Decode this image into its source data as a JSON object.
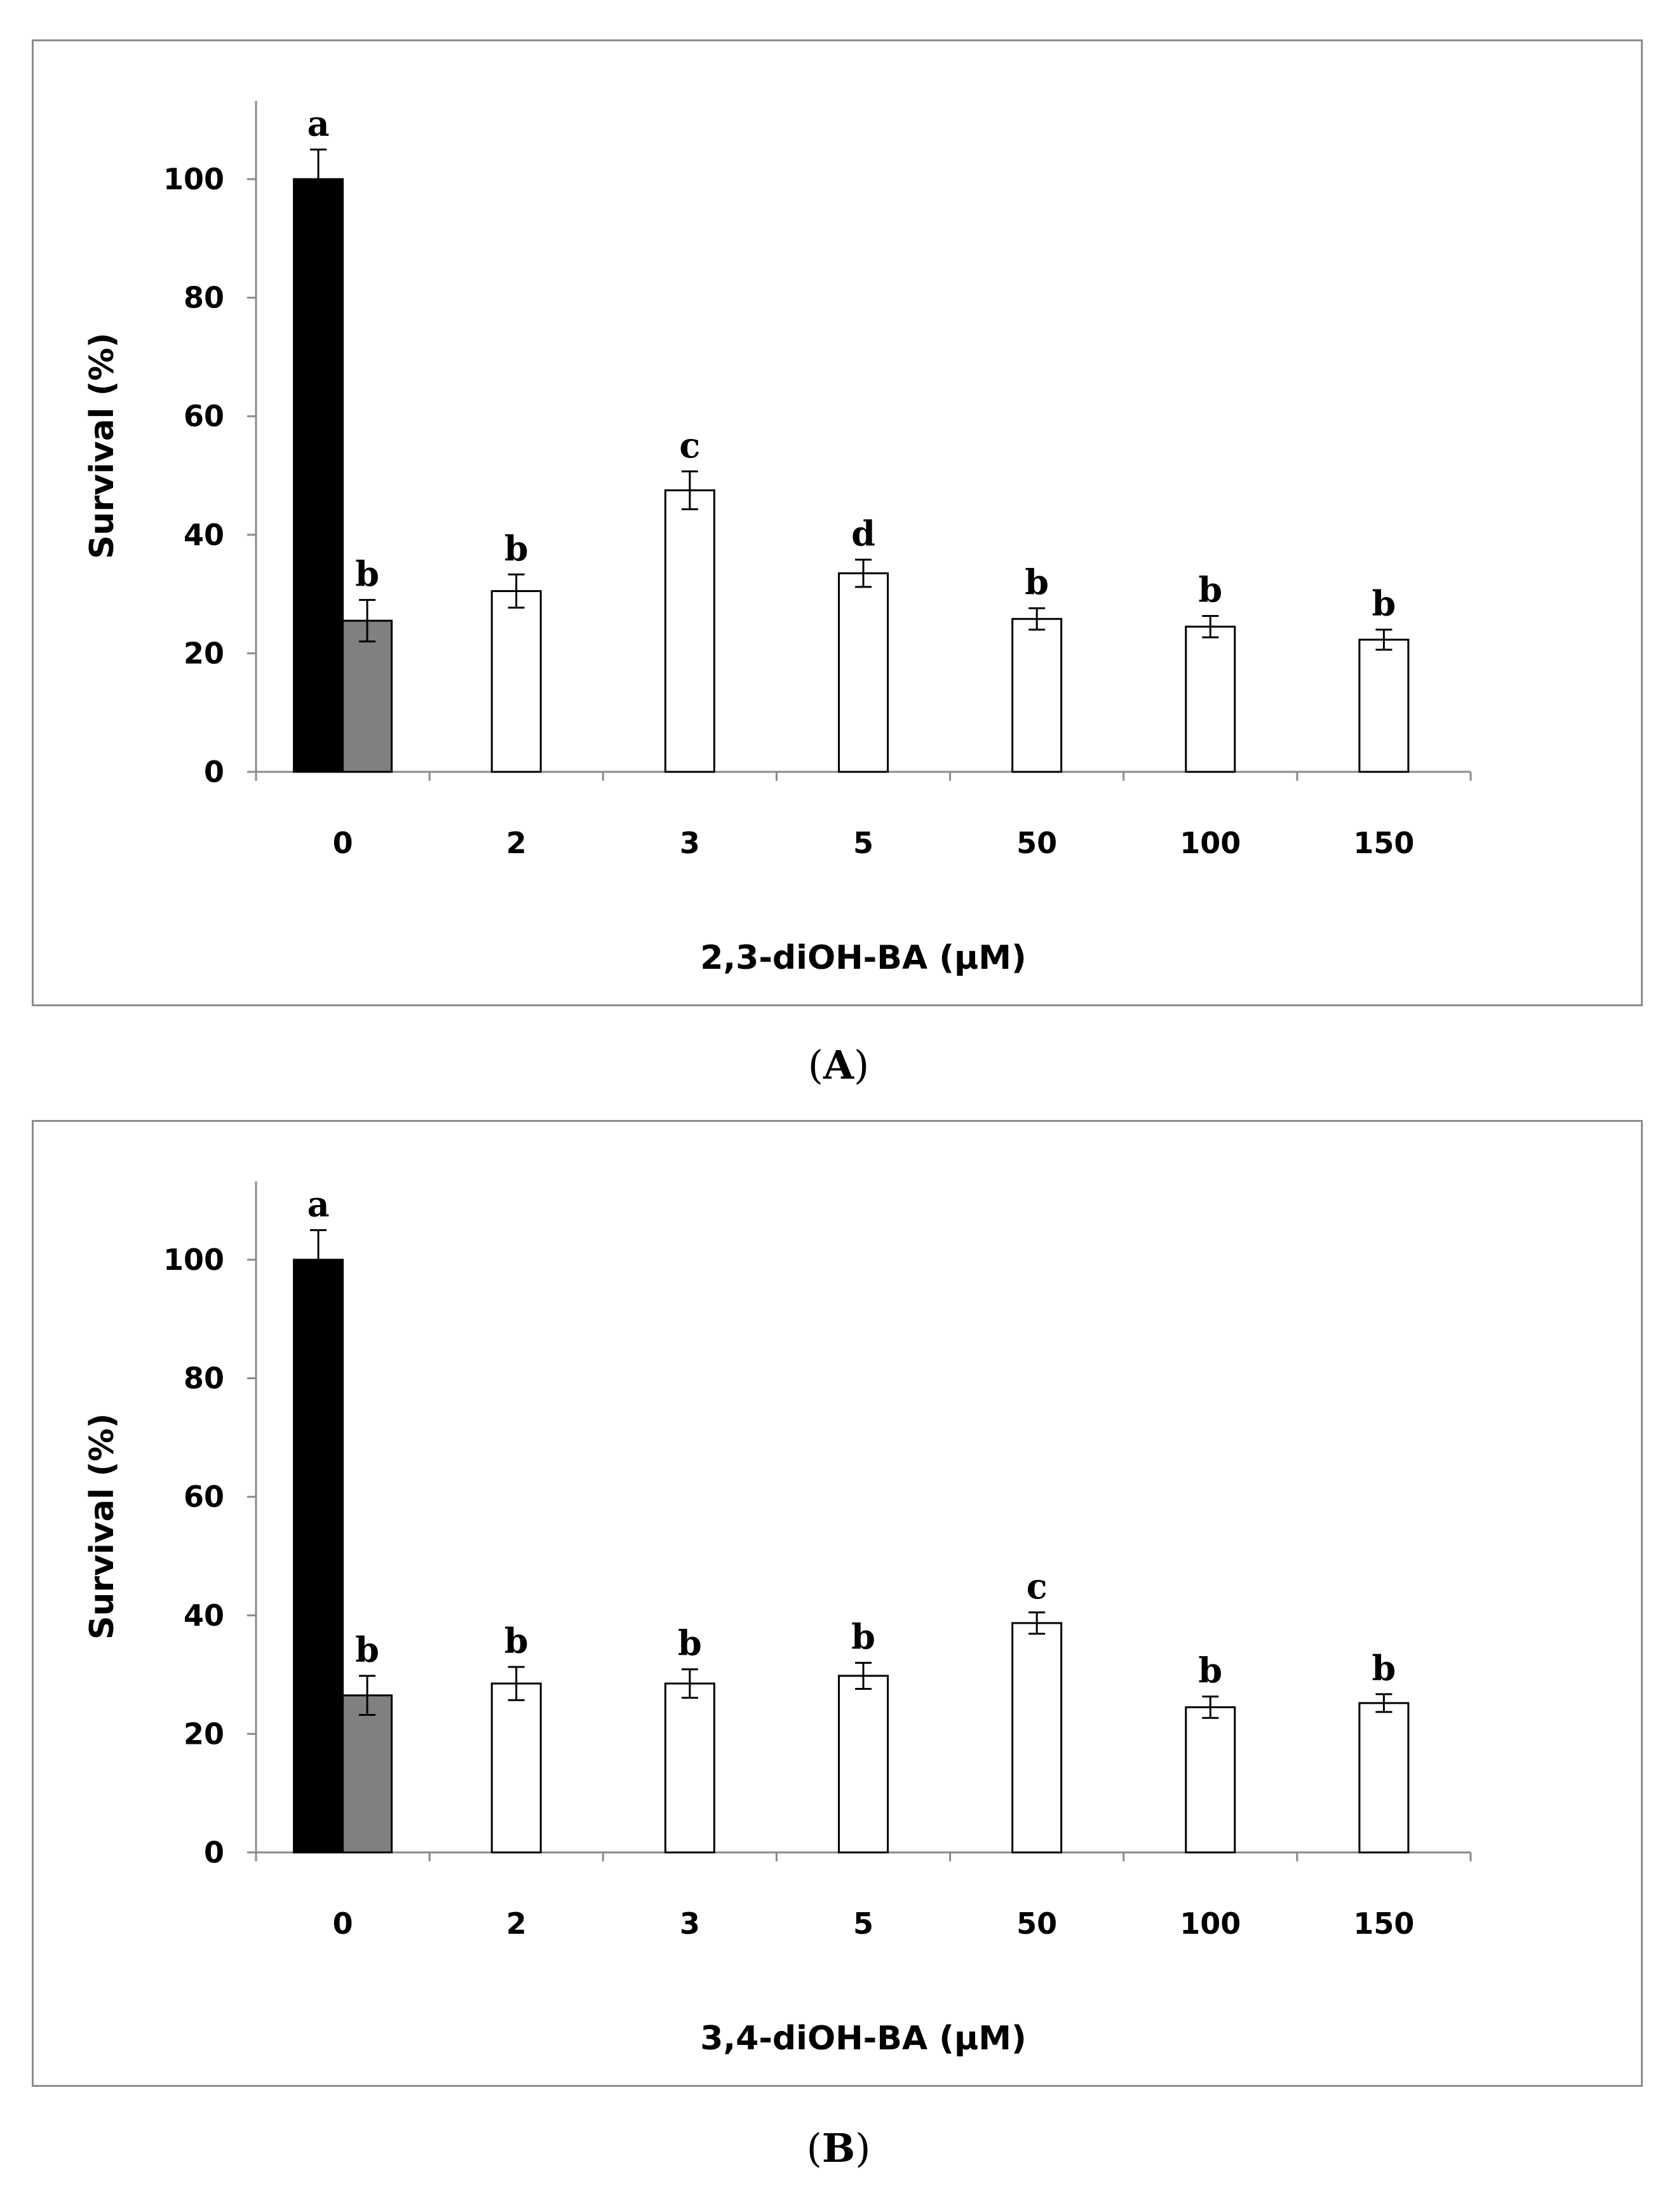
{
  "chart_data": [
    {
      "panel": "A",
      "type": "bar",
      "xlabel": "2,3-diOH-BA (μM)",
      "ylabel": "Survival (%)",
      "ylim": [
        0,
        110
      ],
      "yticks": [
        "0",
        "20",
        "40",
        "60",
        "80",
        "100"
      ],
      "categories": [
        "0",
        "2",
        "3",
        "5",
        "50",
        "100",
        "150"
      ],
      "bars": [
        {
          "category": "0",
          "value": 100,
          "error": 5,
          "label": "a",
          "color": "#000000"
        },
        {
          "category": "0",
          "value": 25.5,
          "error": 3.5,
          "label": "b",
          "color": "#808080"
        },
        {
          "category": "2",
          "value": 30.5,
          "error": 2.8,
          "label": "b",
          "color": "#ffffff"
        },
        {
          "category": "3",
          "value": 47.5,
          "error": 3.2,
          "label": "c",
          "color": "#ffffff"
        },
        {
          "category": "5",
          "value": 33.5,
          "error": 2.3,
          "label": "d",
          "color": "#ffffff"
        },
        {
          "category": "50",
          "value": 25.8,
          "error": 1.8,
          "label": "b",
          "color": "#ffffff"
        },
        {
          "category": "100",
          "value": 24.5,
          "error": 1.8,
          "label": "b",
          "color": "#ffffff"
        },
        {
          "category": "150",
          "value": 22.3,
          "error": 1.7,
          "label": "b",
          "color": "#ffffff"
        }
      ],
      "panel_label": "A"
    },
    {
      "panel": "B",
      "type": "bar",
      "xlabel": "3,4-diOH-BA (μM)",
      "ylabel": "Survival (%)",
      "ylim": [
        0,
        110
      ],
      "yticks": [
        "0",
        "20",
        "40",
        "60",
        "80",
        "100"
      ],
      "categories": [
        "0",
        "2",
        "3",
        "5",
        "50",
        "100",
        "150"
      ],
      "bars": [
        {
          "category": "0",
          "value": 100,
          "error": 5,
          "label": "a",
          "color": "#000000"
        },
        {
          "category": "0",
          "value": 26.5,
          "error": 3.3,
          "label": "b",
          "color": "#808080"
        },
        {
          "category": "2",
          "value": 28.5,
          "error": 2.8,
          "label": "b",
          "color": "#ffffff"
        },
        {
          "category": "3",
          "value": 28.5,
          "error": 2.4,
          "label": "b",
          "color": "#ffffff"
        },
        {
          "category": "5",
          "value": 29.8,
          "error": 2.2,
          "label": "b",
          "color": "#ffffff"
        },
        {
          "category": "50",
          "value": 38.7,
          "error": 1.8,
          "label": "c",
          "color": "#ffffff"
        },
        {
          "category": "100",
          "value": 24.5,
          "error": 1.8,
          "label": "b",
          "color": "#ffffff"
        },
        {
          "category": "150",
          "value": 25.2,
          "error": 1.5,
          "label": "b",
          "color": "#ffffff"
        }
      ],
      "panel_label": "B"
    }
  ]
}
